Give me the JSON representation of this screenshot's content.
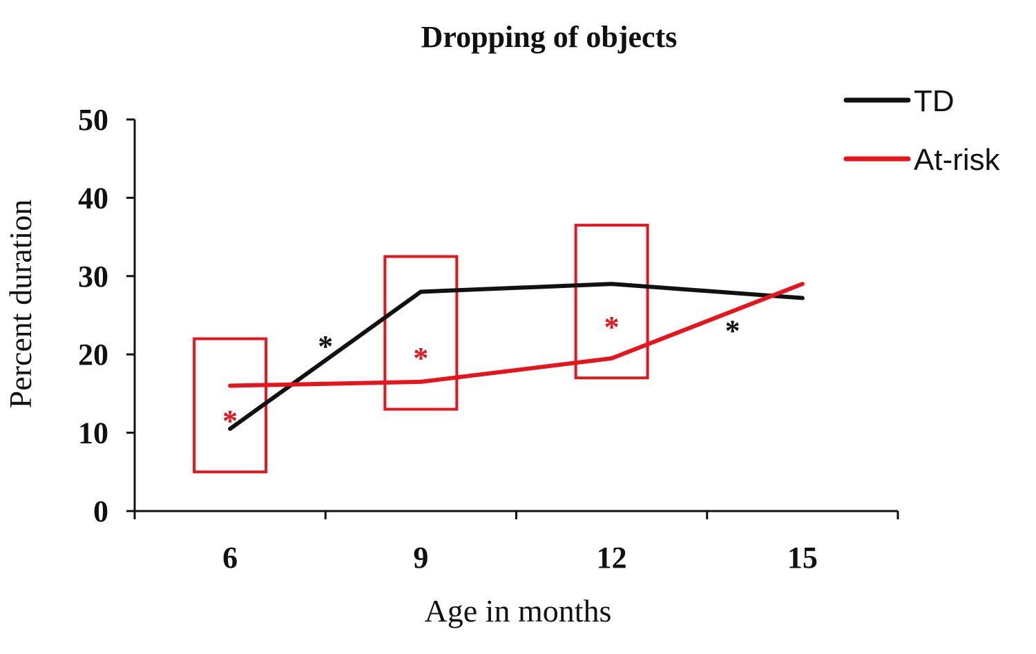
{
  "chart_data": {
    "type": "line",
    "title": "Dropping of objects",
    "xlabel": "Age in months",
    "ylabel": "Percent duration",
    "categories": [
      "6",
      "9",
      "12",
      "15"
    ],
    "ylim": [
      0,
      50
    ],
    "yticks": [
      "0",
      "10",
      "20",
      "30",
      "40",
      "50"
    ],
    "grid": false,
    "legend_position": "top-right",
    "series": [
      {
        "name": "TD",
        "color": "#111111",
        "values": [
          10.5,
          28.0,
          29.0,
          27.2
        ]
      },
      {
        "name": "At-risk",
        "color": "#e8141b",
        "values": [
          16.0,
          16.5,
          19.5,
          29.0
        ]
      }
    ],
    "highlight_boxes": [
      {
        "category": "6",
        "y_range": [
          5.0,
          22.0
        ],
        "color": "#e8141b"
      },
      {
        "category": "9",
        "y_range": [
          13.0,
          32.5
        ],
        "color": "#e8141b"
      },
      {
        "category": "12",
        "y_range": [
          17.0,
          36.5
        ],
        "color": "#e8141b"
      }
    ],
    "annotations": [
      {
        "text": "*",
        "x": 6,
        "y": 12.0,
        "color": "#e8141b"
      },
      {
        "text": "*",
        "x": 7.5,
        "y": 21.5,
        "color": "#111111"
      },
      {
        "text": "*",
        "x": 9,
        "y": 20.0,
        "color": "#e8141b"
      },
      {
        "text": "*",
        "x": 12,
        "y": 24.0,
        "color": "#e8141b"
      },
      {
        "text": "*",
        "x": 13.9,
        "y": 23.5,
        "color": "#111111"
      }
    ]
  }
}
